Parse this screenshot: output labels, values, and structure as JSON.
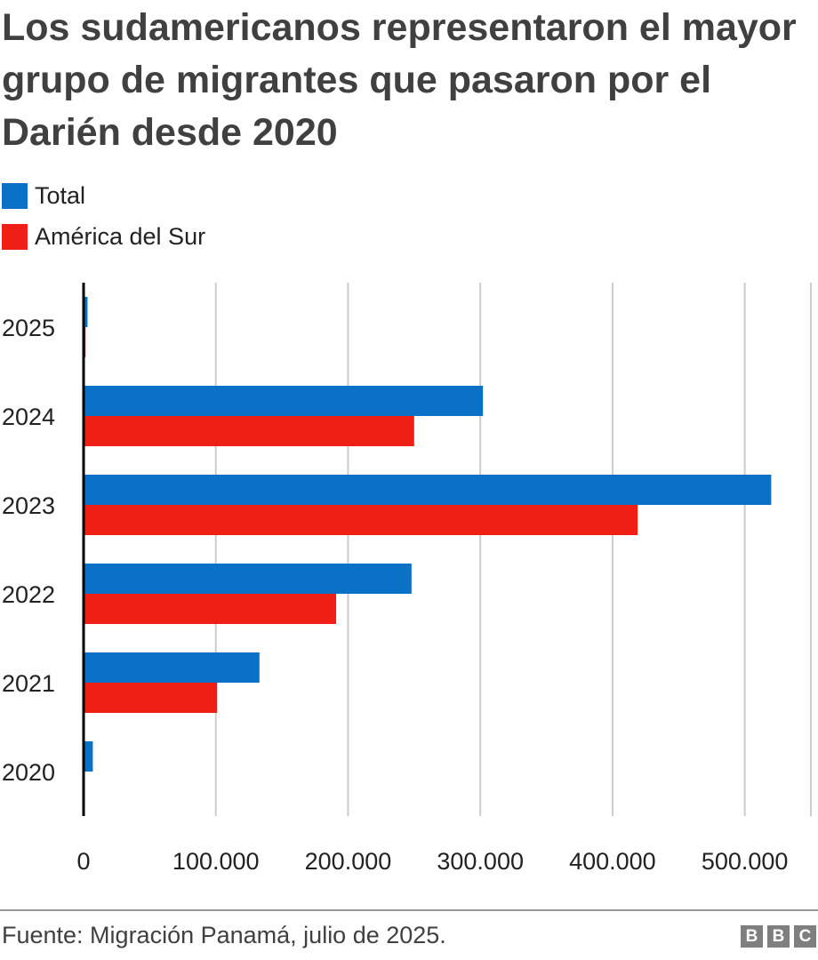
{
  "title": "Los sudamericanos representaron el mayor grupo de migrantes que pasaron por el Darién desde 2020",
  "source": "Fuente: Migración Panamá, julio de 2025.",
  "logo": [
    "B",
    "B",
    "C"
  ],
  "colors": {
    "total": "#0a71c7",
    "south_america": "#ef1f15",
    "grid": "#cccccc",
    "axis": "#000000"
  },
  "chart_data": {
    "type": "bar",
    "orientation": "horizontal",
    "categories": [
      "2025",
      "2024",
      "2023",
      "2022",
      "2021",
      "2020"
    ],
    "series": [
      {
        "name": "Total",
        "values": [
          3000,
          302000,
          520000,
          248000,
          133000,
          7000
        ]
      },
      {
        "name": "América del Sur",
        "values": [
          1500,
          250000,
          419000,
          191000,
          101000,
          0
        ]
      }
    ],
    "xlim": [
      0,
      550000
    ],
    "xticks": [
      0,
      100000,
      200000,
      300000,
      400000,
      500000
    ],
    "xtick_labels": [
      "0",
      "100.000",
      "200.000",
      "300.000",
      "400.000",
      "500.000"
    ],
    "grid": true,
    "legend_position": "top-left"
  }
}
